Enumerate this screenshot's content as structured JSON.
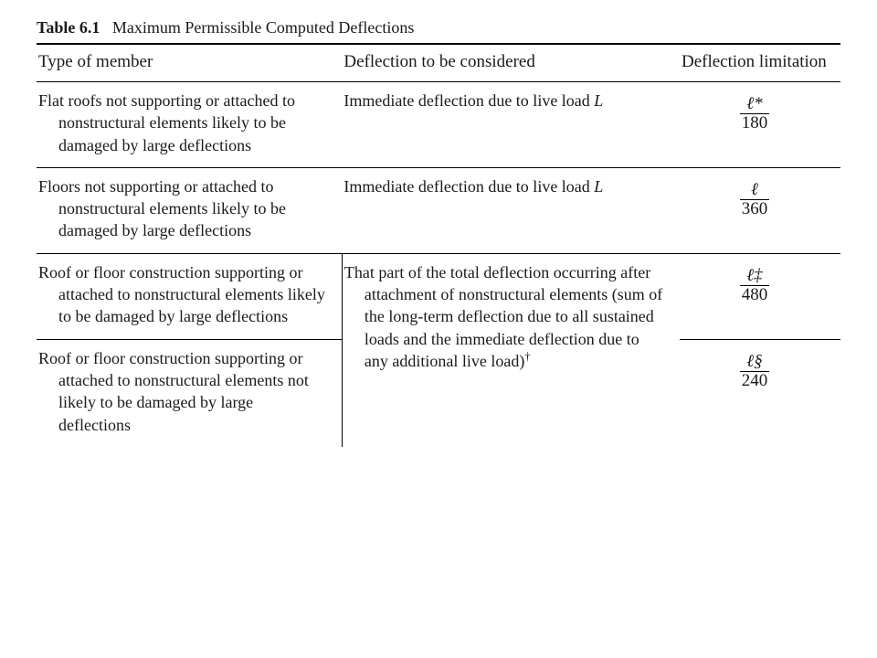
{
  "caption": {
    "label": "Table 6.1",
    "title": "Maximum Permissible Computed Deflections"
  },
  "columns": {
    "c1": "Type of member",
    "c2": "Deflection to be considered",
    "c3": "Deflection limitation"
  },
  "rows": {
    "r1": {
      "member": "Flat roofs not supporting or attached to nonstructural elements likely to be damaged by large deflections",
      "consider_pre": "Immediate deflection due to live load ",
      "consider_it": "L",
      "limit_num": "ℓ*",
      "limit_den": "180"
    },
    "r2": {
      "member": "Floors not supporting or attached to nonstructural elements likely to be damaged by large deflections",
      "consider_pre": "Immediate deflection due to live load ",
      "consider_it": "L",
      "limit_num": "ℓ",
      "limit_den": "360"
    },
    "r3": {
      "member": "Roof or floor construction supporting or attached to nonstructural elements likely to be damaged by large deflections",
      "consider_merged": "That part of the total deflection occurring after attachment of nonstructural elements (sum of the long-term deflection due to all sustained loads and the immediate deflection due to any additional live load)",
      "consider_sup": "†",
      "limit_num": "ℓ‡",
      "limit_den": "480"
    },
    "r4": {
      "member": "Roof or floor construction supporting or attached to nonstructural elements not likely to be damaged by large deflections",
      "limit_num": "ℓ§",
      "limit_den": "240"
    }
  },
  "style": {
    "widths": {
      "c1": "38%",
      "c2": "42%",
      "c3": "20%"
    },
    "font_family": "Times New Roman",
    "font_size_pt": 18,
    "border_color": "#000000",
    "background": "#ffffff"
  }
}
